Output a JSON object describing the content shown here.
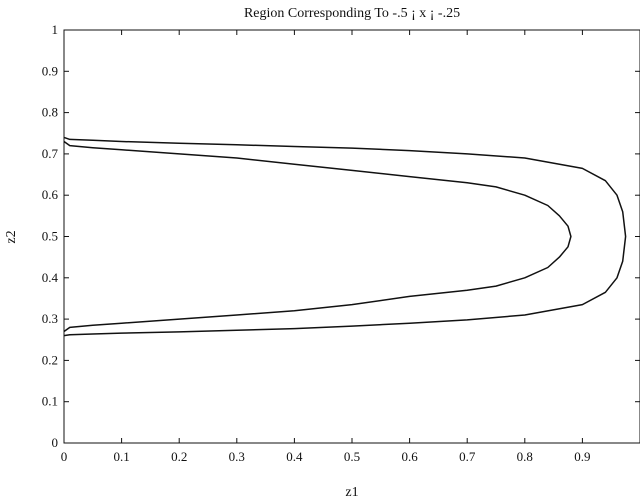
{
  "chart_data": {
    "type": "line",
    "title": "Region Corresponding To -.5 ¡ x ¡ -.25",
    "xlabel": "z1",
    "ylabel": "z2",
    "xlim": [
      0,
      1
    ],
    "ylim": [
      0,
      1
    ],
    "xticks": [
      "0",
      "0.1",
      "0.2",
      "0.3",
      "0.4",
      "0.5",
      "0.6",
      "0.7",
      "0.8",
      "0.9"
    ],
    "yticks": [
      "0",
      "0.1",
      "0.2",
      "0.3",
      "0.4",
      "0.5",
      "0.6",
      "0.7",
      "0.8",
      "0.9",
      "1"
    ],
    "grid": false,
    "series": [
      {
        "color": "#111111",
        "x": [
          0,
          0.01,
          0.05,
          0.1,
          0.2,
          0.3,
          0.4,
          0.5,
          0.6,
          0.7,
          0.75,
          0.8,
          0.84,
          0.86,
          0.875,
          0.88,
          0.875,
          0.86,
          0.84,
          0.8,
          0.75,
          0.7,
          0.6,
          0.5,
          0.4,
          0.3,
          0.2,
          0.1,
          0.05,
          0.01,
          0
        ],
        "y": [
          0.73,
          0.72,
          0.715,
          0.71,
          0.7,
          0.69,
          0.675,
          0.66,
          0.645,
          0.63,
          0.62,
          0.6,
          0.575,
          0.55,
          0.525,
          0.5,
          0.475,
          0.45,
          0.425,
          0.4,
          0.38,
          0.37,
          0.355,
          0.335,
          0.32,
          0.31,
          0.3,
          0.29,
          0.285,
          0.28,
          0.27
        ]
      },
      {
        "color": "#111111",
        "x": [
          0,
          0.01,
          0.05,
          0.1,
          0.2,
          0.3,
          0.4,
          0.5,
          0.6,
          0.7,
          0.8,
          0.9,
          0.94,
          0.96,
          0.97,
          0.975,
          0.97,
          0.96,
          0.94,
          0.9,
          0.8,
          0.7,
          0.6,
          0.5,
          0.4,
          0.3,
          0.2,
          0.1,
          0.05,
          0.01,
          0
        ],
        "y": [
          0.74,
          0.735,
          0.733,
          0.73,
          0.726,
          0.722,
          0.718,
          0.714,
          0.708,
          0.7,
          0.69,
          0.665,
          0.635,
          0.6,
          0.56,
          0.5,
          0.44,
          0.4,
          0.365,
          0.335,
          0.31,
          0.298,
          0.29,
          0.283,
          0.277,
          0.273,
          0.269,
          0.266,
          0.264,
          0.262,
          0.26
        ]
      }
    ]
  }
}
